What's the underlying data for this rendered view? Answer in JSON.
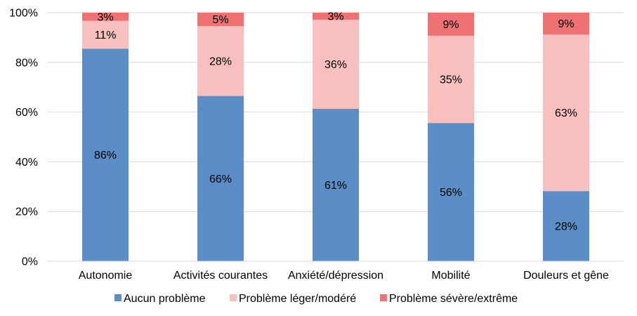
{
  "chart_data": {
    "type": "bar",
    "stacked": true,
    "categories": [
      "Autonomie",
      "Activités courantes",
      "Anxiété/dépression",
      "Mobilité",
      "Douleurs et gêne"
    ],
    "series": [
      {
        "name": "Aucun problème",
        "values": [
          85.5,
          66.5,
          61.3,
          55.6,
          28.2
        ],
        "labels": [
          "86%",
          "66%",
          "61%",
          "56%",
          "28%"
        ],
        "color": "#5b8dc6"
      },
      {
        "name": "Problème léger/modéré",
        "values": [
          11.2,
          28.1,
          35.8,
          35.1,
          63.0
        ],
        "labels": [
          "11%",
          "28%",
          "36%",
          "35%",
          "63%"
        ],
        "color": "#f7c0bf"
      },
      {
        "name": "Problème sévère/extrême",
        "values": [
          3.3,
          5.4,
          2.9,
          9.3,
          8.8
        ],
        "labels": [
          "3%",
          "5%",
          "3%",
          "9%",
          "9%"
        ],
        "color": "#ee7272"
      }
    ],
    "y_ticks": [
      "0%",
      "20%",
      "40%",
      "60%",
      "80%",
      "100%"
    ],
    "ylim": [
      0,
      100
    ],
    "grid": true,
    "legend_position": "bottom"
  }
}
